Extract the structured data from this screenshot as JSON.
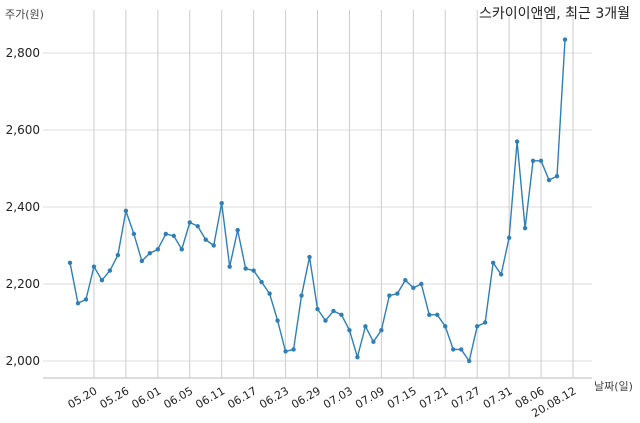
{
  "chart_data": {
    "type": "line",
    "title": "스카이이앤엠, 최근 3개월",
    "ylabel": "주가(원)",
    "xlabel": "날짜(일)",
    "ylim": [
      1950,
      2880
    ],
    "yticks": [
      2000,
      2200,
      2400,
      2600,
      2800
    ],
    "ytick_labels": [
      "2,000",
      "2,200",
      "2,400",
      "2,600",
      "2,800"
    ],
    "xtick_labels": [
      "05.20",
      "05.26",
      "06.01",
      "06.05",
      "06.11",
      "06.17",
      "06.23",
      "06.29",
      "07.03",
      "07.09",
      "07.15",
      "07.21",
      "07.27",
      "07.31",
      "08.06",
      "20.08.12"
    ],
    "xtick_index": [
      3,
      7,
      11,
      15,
      19,
      23,
      27,
      31,
      35,
      39,
      43,
      47,
      51,
      55,
      59,
      63
    ],
    "grid": "vertical",
    "line_color": "#2e7fb8",
    "series": [
      {
        "values": [
          2255,
          2150,
          2160,
          2245,
          2210,
          2235,
          2275,
          2390,
          2330,
          2260,
          2280,
          2290,
          2330,
          2325,
          2290,
          2360,
          2350,
          2315,
          2300,
          2410,
          2245,
          2340,
          2240,
          2235,
          2205,
          2175,
          2105,
          2025,
          2030,
          2170,
          2270,
          2135,
          2105,
          2130,
          2120,
          2080,
          2010,
          2090,
          2050,
          2080,
          2170,
          2175,
          2210,
          2190,
          2200,
          2120,
          2120,
          2090,
          2030,
          2030,
          2000,
          2090,
          2100,
          2255,
          2225,
          2320,
          2570,
          2345,
          2520,
          2520,
          2470,
          2480,
          2835
        ]
      }
    ]
  }
}
